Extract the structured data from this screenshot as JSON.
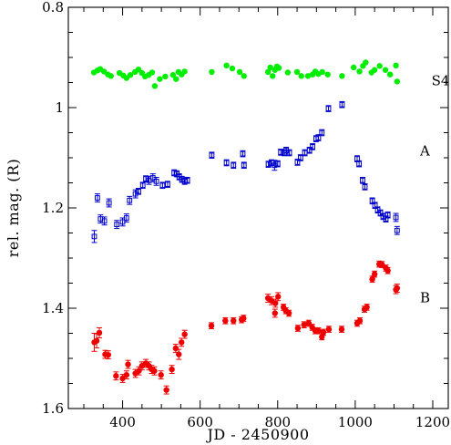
{
  "chart_data": {
    "type": "scatter",
    "title": "",
    "xlabel": "JD - 2450900",
    "ylabel": "rel. mag. (R)",
    "xlim": [
      260,
      1240
    ],
    "ylim": [
      1.6,
      0.8
    ],
    "y_inverted": true,
    "x_ticks": [
      400,
      600,
      800,
      1000,
      1200
    ],
    "x_tick_labels": [
      "400",
      "600",
      "800",
      "1000",
      "1200"
    ],
    "y_ticks": [
      0.8,
      1.0,
      1.2,
      1.4,
      1.6
    ],
    "y_tick_labels": [
      "0.8",
      "1",
      "1.2",
      "1.4",
      "1.6"
    ],
    "grid": false,
    "series": [
      {
        "name": "S4",
        "label_x": 1220,
        "label_y": 0.955,
        "color": "#00ee00",
        "marker": "filled-circle",
        "error_bars": false,
        "points": [
          [
            326,
            0.93
          ],
          [
            335,
            0.926
          ],
          [
            342,
            0.923
          ],
          [
            352,
            0.928
          ],
          [
            362,
            0.934
          ],
          [
            370,
            0.937
          ],
          [
            392,
            0.931
          ],
          [
            402,
            0.936
          ],
          [
            410,
            0.941
          ],
          [
            420,
            0.935
          ],
          [
            432,
            0.929
          ],
          [
            441,
            0.924
          ],
          [
            450,
            0.931
          ],
          [
            458,
            0.938
          ],
          [
            467,
            0.935
          ],
          [
            476,
            0.93
          ],
          [
            483,
            0.957
          ],
          [
            496,
            0.943
          ],
          [
            510,
            0.938
          ],
          [
            530,
            0.935
          ],
          [
            538,
            0.943
          ],
          [
            544,
            0.929
          ],
          [
            552,
            0.934
          ],
          [
            560,
            0.928
          ],
          [
            630,
            0.929
          ],
          [
            668,
            0.916
          ],
          [
            683,
            0.922
          ],
          [
            702,
            0.929
          ],
          [
            713,
            0.937
          ],
          [
            775,
            0.929
          ],
          [
            781,
            0.92
          ],
          [
            787,
            0.937
          ],
          [
            793,
            0.925
          ],
          [
            798,
            0.918
          ],
          [
            803,
            0.921
          ],
          [
            826,
            0.93
          ],
          [
            850,
            0.929
          ],
          [
            861,
            0.937
          ],
          [
            878,
            0.937
          ],
          [
            890,
            0.934
          ],
          [
            897,
            0.928
          ],
          [
            905,
            0.933
          ],
          [
            915,
            0.929
          ],
          [
            929,
            0.934
          ],
          [
            966,
            0.937
          ],
          [
            996,
            0.92
          ],
          [
            1011,
            0.928
          ],
          [
            1020,
            0.917
          ],
          [
            1027,
            0.91
          ],
          [
            1042,
            0.93
          ],
          [
            1050,
            0.925
          ],
          [
            1063,
            0.917
          ],
          [
            1078,
            0.925
          ],
          [
            1090,
            0.934
          ],
          [
            1105,
            0.916
          ],
          [
            1108,
            0.948
          ]
        ]
      },
      {
        "name": "A",
        "label_x": 1180,
        "label_y": 1.095,
        "color": "#0000cc",
        "marker": "open-square",
        "error_bars": true,
        "points": [
          [
            327,
            1.257,
            0.012
          ],
          [
            335,
            1.18,
            0.008
          ],
          [
            343,
            1.222,
            0.008
          ],
          [
            353,
            1.226,
            0.008
          ],
          [
            365,
            1.19,
            0.008
          ],
          [
            385,
            1.233,
            0.008
          ],
          [
            400,
            1.228,
            0.008
          ],
          [
            410,
            1.22,
            0.008
          ],
          [
            418,
            1.185,
            0.008
          ],
          [
            433,
            1.172,
            0.008
          ],
          [
            441,
            1.167,
            0.006
          ],
          [
            452,
            1.155,
            0.006
          ],
          [
            460,
            1.142,
            0.006
          ],
          [
            468,
            1.145,
            0.008
          ],
          [
            478,
            1.14,
            0.008
          ],
          [
            487,
            1.147,
            0.008
          ],
          [
            503,
            1.155,
            0.006
          ],
          [
            516,
            1.153,
            0.006
          ],
          [
            533,
            1.13,
            0.006
          ],
          [
            540,
            1.132,
            0.006
          ],
          [
            546,
            1.138,
            0.006
          ],
          [
            553,
            1.143,
            0.006
          ],
          [
            560,
            1.147,
            0.006
          ],
          [
            567,
            1.145,
            0.006
          ],
          [
            630,
            1.095,
            0.006
          ],
          [
            668,
            1.11,
            0.006
          ],
          [
            686,
            1.115,
            0.006
          ],
          [
            710,
            1.092,
            0.006
          ],
          [
            713,
            1.115,
            0.006
          ],
          [
            776,
            1.113,
            0.006
          ],
          [
            784,
            1.11,
            0.006
          ],
          [
            792,
            1.115,
            0.01
          ],
          [
            800,
            1.112,
            0.006
          ],
          [
            808,
            1.089,
            0.006
          ],
          [
            817,
            1.09,
            0.006
          ],
          [
            822,
            1.085,
            0.006
          ],
          [
            830,
            1.09,
            0.006
          ],
          [
            851,
            1.109,
            0.006
          ],
          [
            859,
            1.1,
            0.006
          ],
          [
            870,
            1.09,
            0.006
          ],
          [
            882,
            1.085,
            0.006
          ],
          [
            890,
            1.078,
            0.006
          ],
          [
            899,
            1.062,
            0.006
          ],
          [
            905,
            1.06,
            0.006
          ],
          [
            914,
            1.05,
            0.006
          ],
          [
            931,
            1.002,
            0.006
          ],
          [
            966,
            0.994,
            0.006
          ],
          [
            1005,
            1.102,
            0.006
          ],
          [
            1010,
            1.112,
            0.006
          ],
          [
            1019,
            1.145,
            0.006
          ],
          [
            1025,
            1.158,
            0.006
          ],
          [
            1044,
            1.186,
            0.006
          ],
          [
            1051,
            1.195,
            0.006
          ],
          [
            1058,
            1.204,
            0.006
          ],
          [
            1065,
            1.21,
            0.006
          ],
          [
            1072,
            1.217,
            0.006
          ],
          [
            1079,
            1.222,
            0.006
          ],
          [
            1084,
            1.214,
            0.006
          ],
          [
            1105,
            1.219,
            0.008
          ],
          [
            1108,
            1.245,
            0.008
          ]
        ]
      },
      {
        "name": "B",
        "label_x": 1180,
        "label_y": 1.388,
        "color": "#ee0000",
        "marker": "filled-circle",
        "error_bars": true,
        "points": [
          [
            327,
            1.468,
            0.018
          ],
          [
            333,
            1.465,
            0.014
          ],
          [
            340,
            1.449,
            0.01
          ],
          [
            355,
            1.492,
            0.008
          ],
          [
            363,
            1.493,
            0.008
          ],
          [
            383,
            1.535,
            0.008
          ],
          [
            400,
            1.54,
            0.008
          ],
          [
            410,
            1.533,
            0.008
          ],
          [
            414,
            1.512,
            0.008
          ],
          [
            433,
            1.53,
            0.008
          ],
          [
            442,
            1.525,
            0.008
          ],
          [
            450,
            1.515,
            0.008
          ],
          [
            460,
            1.51,
            0.008
          ],
          [
            468,
            1.515,
            0.008
          ],
          [
            475,
            1.522,
            0.008
          ],
          [
            482,
            1.525,
            0.008
          ],
          [
            499,
            1.533,
            0.008
          ],
          [
            513,
            1.563,
            0.008
          ],
          [
            527,
            1.522,
            0.008
          ],
          [
            537,
            1.48,
            0.008
          ],
          [
            545,
            1.492,
            0.01
          ],
          [
            552,
            1.468,
            0.008
          ],
          [
            560,
            1.452,
            0.008
          ],
          [
            629,
            1.435,
            0.006
          ],
          [
            665,
            1.425,
            0.006
          ],
          [
            686,
            1.425,
            0.006
          ],
          [
            707,
            1.423,
            0.006
          ],
          [
            712,
            1.42,
            0.006
          ],
          [
            775,
            1.38,
            0.008
          ],
          [
            784,
            1.385,
            0.008
          ],
          [
            794,
            1.39,
            0.008
          ],
          [
            793,
            1.41,
            0.008
          ],
          [
            801,
            1.377,
            0.008
          ],
          [
            815,
            1.398,
            0.006
          ],
          [
            821,
            1.405,
            0.006
          ],
          [
            829,
            1.41,
            0.006
          ],
          [
            852,
            1.44,
            0.006
          ],
          [
            868,
            1.433,
            0.006
          ],
          [
            880,
            1.43,
            0.006
          ],
          [
            889,
            1.438,
            0.006
          ],
          [
            897,
            1.445,
            0.006
          ],
          [
            905,
            1.445,
            0.006
          ],
          [
            914,
            1.457,
            0.006
          ],
          [
            918,
            1.448,
            0.006
          ],
          [
            932,
            1.442,
            0.006
          ],
          [
            965,
            1.442,
            0.006
          ],
          [
            1005,
            1.43,
            0.006
          ],
          [
            1012,
            1.425,
            0.006
          ],
          [
            1024,
            1.402,
            0.006
          ],
          [
            1030,
            1.398,
            0.006
          ],
          [
            1044,
            1.342,
            0.006
          ],
          [
            1050,
            1.332,
            0.006
          ],
          [
            1062,
            1.312,
            0.006
          ],
          [
            1069,
            1.313,
            0.006
          ],
          [
            1079,
            1.32,
            0.006
          ],
          [
            1084,
            1.325,
            0.006
          ],
          [
            1105,
            1.363,
            0.008
          ],
          [
            1108,
            1.36,
            0.008
          ]
        ]
      }
    ]
  }
}
